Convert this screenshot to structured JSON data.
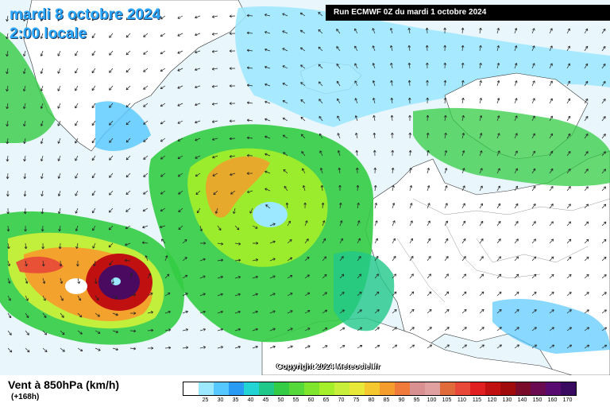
{
  "header": {
    "date": "mardi 8 octobre 2024",
    "time": "2:00 locale",
    "run": "Run ECMWF 0Z du mardi 1 octobre 2024"
  },
  "footer": {
    "title": "Vent à 850hPa (km/h)",
    "subtitle": "(+168h)",
    "copyright": "Copyright 2024 Meteociel.fr"
  },
  "legend": {
    "labels": [
      "",
      "25",
      "30",
      "35",
      "40",
      "45",
      "50",
      "55",
      "60",
      "65",
      "70",
      "75",
      "80",
      "85",
      "90",
      "95",
      "100",
      "105",
      "110",
      "115",
      "120",
      "130",
      "140",
      "150",
      "160",
      "170"
    ],
    "colors": [
      "#ffffff",
      "#9be8ff",
      "#55c8ff",
      "#2a9bf5",
      "#22d4d4",
      "#20c88a",
      "#33cc44",
      "#55d83a",
      "#7fe52c",
      "#a5ee2a",
      "#c8f03a",
      "#e8e838",
      "#f5c830",
      "#f59d2c",
      "#f07a3a",
      "#d99090",
      "#e0a0a0",
      "#e06a3a",
      "#e84838",
      "#e02020",
      "#c01010",
      "#a00a0a",
      "#7a0a2a",
      "#6a0a50",
      "#580a70",
      "#3a0a60"
    ]
  },
  "colors": {
    "land": "#ffffff",
    "light_wind": "#e9f6fc",
    "cyan_wind": "#9be8ff",
    "blue_wind": "#55c8ff",
    "green_wind": "#33cc44",
    "yellow_wind": "#c8f03a",
    "orange_wind": "#f59d2c",
    "storm_red": "#c01010",
    "storm_core": "#4a0a60"
  }
}
